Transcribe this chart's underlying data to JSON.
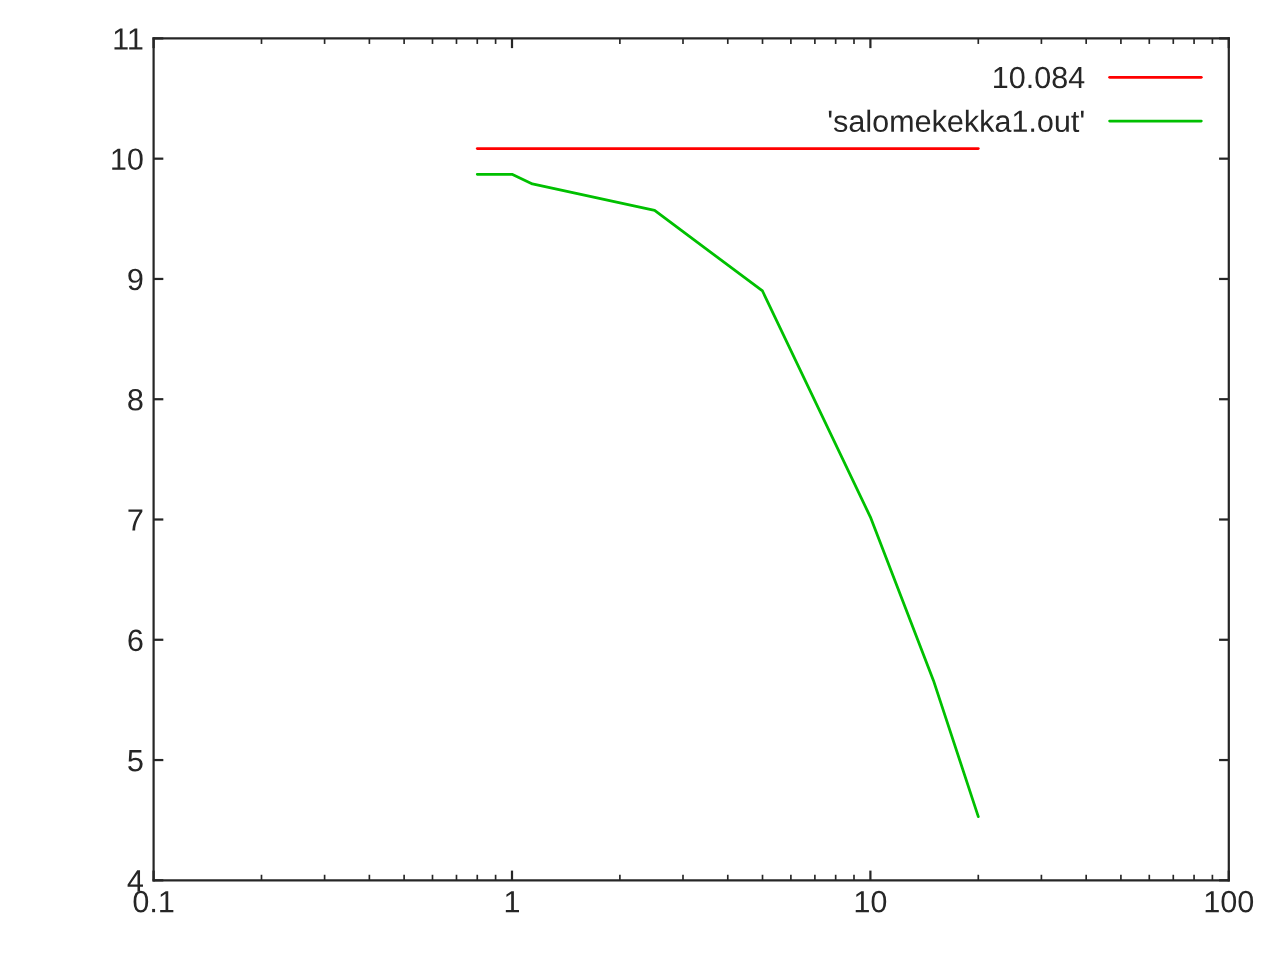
{
  "chart_data": {
    "type": "line",
    "log": "x",
    "grid": false,
    "legend": "top right",
    "marker": "none",
    "line_style": "solid",
    "xlim": [
      0.1,
      100
    ],
    "xticks": [
      0.1,
      1,
      10,
      100
    ],
    "ylim": [
      4,
      11
    ],
    "yticks": [
      4,
      5,
      6,
      7,
      8,
      9,
      10,
      11
    ],
    "series": [
      {
        "name": "10.084",
        "color": "#ff0000",
        "x": [
          0.8,
          20
        ],
        "values": [
          10.084,
          10.084
        ]
      },
      {
        "name": "'salomekekka1.out'",
        "color": "#00c000",
        "x": [
          0.8,
          1,
          1.14,
          2.5,
          5,
          10,
          15,
          20
        ],
        "values": [
          9.87,
          9.87,
          9.79,
          9.57,
          8.9,
          7.02,
          5.66,
          4.53
        ]
      }
    ]
  }
}
